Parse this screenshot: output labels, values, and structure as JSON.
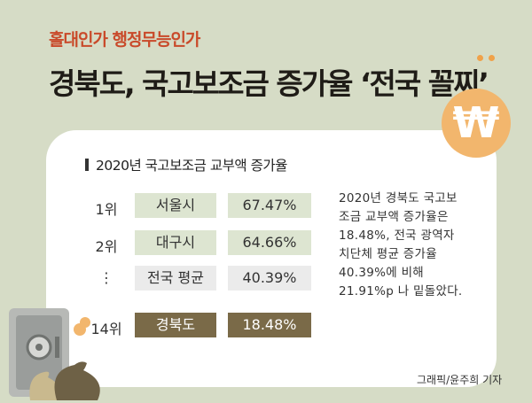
{
  "subtitle": "홀대인가 행정무능인가",
  "title": "경북도, 국고보조금 증가율 ‘전국 꼴찌’",
  "icons": [
    "won-coin-icon",
    "safe-icon",
    "money-bag-icon"
  ],
  "colors": {
    "background": "#d6dcc6",
    "accent_red": "#c94a2a",
    "bar_light_green": "#dde5d1",
    "bar_gray": "#ebebeb",
    "bar_highlight": "#7a6a48",
    "coin": "#f2b66d"
  },
  "chart_data": {
    "type": "table",
    "title": "2020년 국고보조금 교부액 증가율",
    "rows": [
      {
        "rank": "1위",
        "region": "서울시",
        "value": "67.47%"
      },
      {
        "rank": "2위",
        "region": "대구시",
        "value": "64.66%"
      },
      {
        "rank": "⋮",
        "region": "전국 평균",
        "value": "40.39%"
      },
      {
        "rank": "14위",
        "region": "경북도",
        "value": "18.48%"
      }
    ],
    "values": [
      67.47,
      64.66,
      40.39,
      18.48
    ],
    "highlight_row": 3
  },
  "note": "2020년 경북도 국고보조금 교부액 증가율은 18.48%, 전국 광역자치단체 평균 증가율 40.39%에 비해 21.91%p 나 밑돌았다.",
  "credit": "그래픽/윤주희 기자"
}
